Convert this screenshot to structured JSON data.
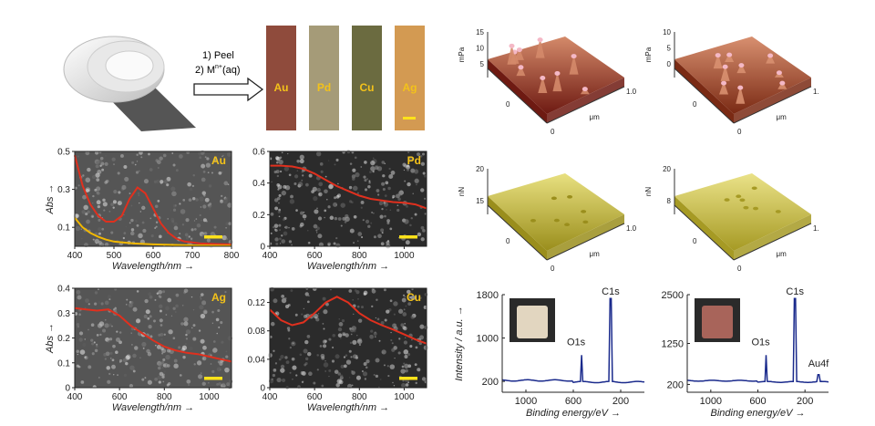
{
  "process": {
    "step1": "1) Peel",
    "step2_prefix": "2) M",
    "step2_sup": "n+",
    "step2_suffix": "(aq)",
    "strips": [
      {
        "label": "Au",
        "color": "#8f4b3c"
      },
      {
        "label": "Pd",
        "color": "#a59b78"
      },
      {
        "label": "Cu",
        "color": "#6b6b40"
      },
      {
        "label": "Ag",
        "color": "#d39a52"
      }
    ]
  },
  "chart_data": [
    {
      "type": "line",
      "panel": "Au",
      "tag": "Au",
      "ylabel": "Abs",
      "xlabel": "Wavelength/nm",
      "xlim": [
        400,
        800
      ],
      "ylim": [
        0,
        0.5
      ],
      "xticks": [
        "400",
        "500",
        "600",
        "700",
        "800"
      ],
      "yticks": [
        "0.1",
        "0.3",
        "0.5"
      ],
      "series": [
        {
          "color": "#e0301e",
          "x": [
            400,
            420,
            440,
            460,
            480,
            500,
            520,
            540,
            560,
            580,
            600,
            620,
            640,
            660,
            680,
            700,
            720,
            760,
            800
          ],
          "y": [
            0.48,
            0.32,
            0.22,
            0.16,
            0.13,
            0.13,
            0.16,
            0.25,
            0.31,
            0.28,
            0.2,
            0.12,
            0.07,
            0.04,
            0.025,
            0.02,
            0.015,
            0.012,
            0.01
          ]
        },
        {
          "color": "#f2b800",
          "x": [
            400,
            420,
            440,
            460,
            480,
            500,
            550,
            600,
            700,
            800
          ],
          "y": [
            0.15,
            0.1,
            0.07,
            0.05,
            0.035,
            0.025,
            0.015,
            0.01,
            0.005,
            0.003
          ]
        }
      ]
    },
    {
      "type": "line",
      "panel": "Pd",
      "tag": "Pd",
      "ylabel": "",
      "xlabel": "Wavelength/nm",
      "xlim": [
        400,
        1100
      ],
      "ylim": [
        0,
        0.6
      ],
      "xticks": [
        "400",
        "600",
        "800",
        "1000"
      ],
      "yticks": [
        "0",
        "0.2",
        "0.4",
        "0.6"
      ],
      "series": [
        {
          "color": "#e0301e",
          "x": [
            400,
            450,
            500,
            550,
            600,
            650,
            700,
            750,
            800,
            850,
            900,
            950,
            1000,
            1050,
            1100
          ],
          "y": [
            0.51,
            0.51,
            0.505,
            0.49,
            0.46,
            0.42,
            0.38,
            0.35,
            0.32,
            0.3,
            0.29,
            0.28,
            0.275,
            0.265,
            0.24
          ]
        }
      ]
    },
    {
      "type": "line",
      "panel": "Ag",
      "tag": "Ag",
      "ylabel": "Abs",
      "xlabel": "Wavelength/nm",
      "xlim": [
        400,
        1100
      ],
      "ylim": [
        0,
        0.4
      ],
      "xticks": [
        "400",
        "600",
        "800",
        "1000"
      ],
      "yticks": [
        "0",
        "0.1",
        "0.2",
        "0.3",
        "0.4"
      ],
      "series": [
        {
          "color": "#e0301e",
          "x": [
            400,
            450,
            500,
            550,
            600,
            650,
            700,
            750,
            800,
            850,
            900,
            950,
            1000,
            1050,
            1100
          ],
          "y": [
            0.32,
            0.315,
            0.31,
            0.315,
            0.29,
            0.25,
            0.22,
            0.19,
            0.165,
            0.15,
            0.14,
            0.135,
            0.125,
            0.115,
            0.105
          ]
        }
      ]
    },
    {
      "type": "line",
      "panel": "Cu",
      "tag": "Cu",
      "ylabel": "",
      "xlabel": "Wavelength/nm",
      "xlim": [
        400,
        1100
      ],
      "ylim": [
        0,
        0.14
      ],
      "xticks": [
        "400",
        "600",
        "800",
        "1000"
      ],
      "yticks": [
        "0",
        "0.04",
        "0.08",
        "0.12"
      ],
      "series": [
        {
          "color": "#e0301e",
          "x": [
            400,
            450,
            500,
            550,
            600,
            650,
            700,
            750,
            800,
            850,
            900,
            950,
            1000,
            1050,
            1100
          ],
          "y": [
            0.11,
            0.095,
            0.088,
            0.092,
            0.105,
            0.12,
            0.128,
            0.12,
            0.105,
            0.095,
            0.088,
            0.082,
            0.075,
            0.068,
            0.062
          ]
        }
      ]
    },
    {
      "type": "line",
      "panel": "XPS-left",
      "ylabel": "Intensity / a.u.",
      "xlabel": "Binding energy/eV",
      "xlim": [
        1200,
        0
      ],
      "ylim": [
        0,
        1800
      ],
      "xticks": [
        "1000",
        "600",
        "200"
      ],
      "yticks": [
        "200",
        "1000",
        "1800"
      ],
      "annotations": [
        {
          "text": "O1s",
          "x": 530
        },
        {
          "text": "C1s",
          "x": 285
        }
      ]
    },
    {
      "type": "line",
      "panel": "XPS-right",
      "ylabel": "",
      "xlabel": "Binding energy/eV",
      "xlim": [
        1200,
        0
      ],
      "ylim": [
        0,
        2500
      ],
      "xticks": [
        "1000",
        "600",
        "200"
      ],
      "yticks": [
        "200",
        "1250",
        "2500"
      ],
      "annotations": [
        {
          "text": "O1s",
          "x": 530
        },
        {
          "text": "C1s",
          "x": 285
        },
        {
          "text": "Au4f",
          "x": 85
        }
      ]
    }
  ],
  "afm": [
    {
      "unit": "mPa",
      "zticks": [
        "5",
        "10",
        "15"
      ],
      "xticks": [
        "0",
        "1.0"
      ],
      "ytick": "0",
      "axis": "μm",
      "top": "#d48a6a",
      "bottom": "#6e1a12"
    },
    {
      "unit": "mPa",
      "zticks": [
        "0",
        "5",
        "10"
      ],
      "xticks": [
        "0",
        "1."
      ],
      "ytick": "0",
      "axis": "μm",
      "top": "#d89070",
      "bottom": "#7a2a14"
    },
    {
      "unit": "nN",
      "zticks": [
        "15",
        "20"
      ],
      "xticks": [
        "0",
        "1.0"
      ],
      "ytick": "0",
      "axis": "μm",
      "top": "#e8e080",
      "bottom": "#9a8e1c"
    },
    {
      "unit": "nN",
      "zticks": [
        "8",
        "20"
      ],
      "xticks": [
        "0",
        "1."
      ],
      "ytick": "0",
      "axis": "μm",
      "top": "#eae288",
      "bottom": "#a69a24"
    }
  ]
}
